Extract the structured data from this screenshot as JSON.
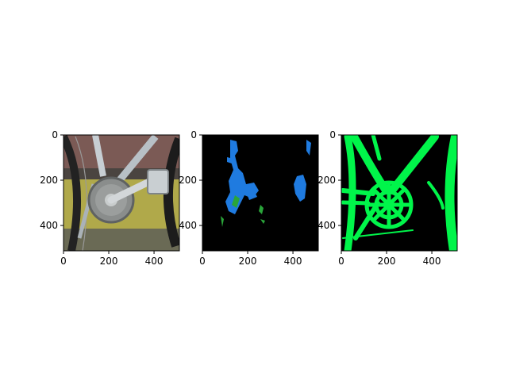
{
  "panels": [
    {
      "id": "photo",
      "content": "bicycle crankset photo",
      "x_ticks": [
        "0",
        "200",
        "400"
      ],
      "y_ticks": [
        "0",
        "200",
        "400"
      ],
      "colors": {
        "frame": "#b8c0c6",
        "chainring": "#8a8d8c",
        "floor": "#b0a94a",
        "tire": "#222222"
      }
    },
    {
      "id": "segmentation-blue-green",
      "content": "segmentation mask on black background",
      "x_ticks": [
        "0",
        "200",
        "400"
      ],
      "y_ticks": [
        "0",
        "200",
        "400"
      ],
      "colors": {
        "background": "#000000",
        "mask_primary": "#1f7be0",
        "mask_secondary": "#2aa53a"
      }
    },
    {
      "id": "segmentation-green",
      "content": "green bicycle mask on black background",
      "x_ticks": [
        "0",
        "200",
        "400"
      ],
      "y_ticks": [
        "0",
        "200",
        "400"
      ],
      "colors": {
        "background": "#000000",
        "mask": "#00f54a"
      }
    }
  ]
}
